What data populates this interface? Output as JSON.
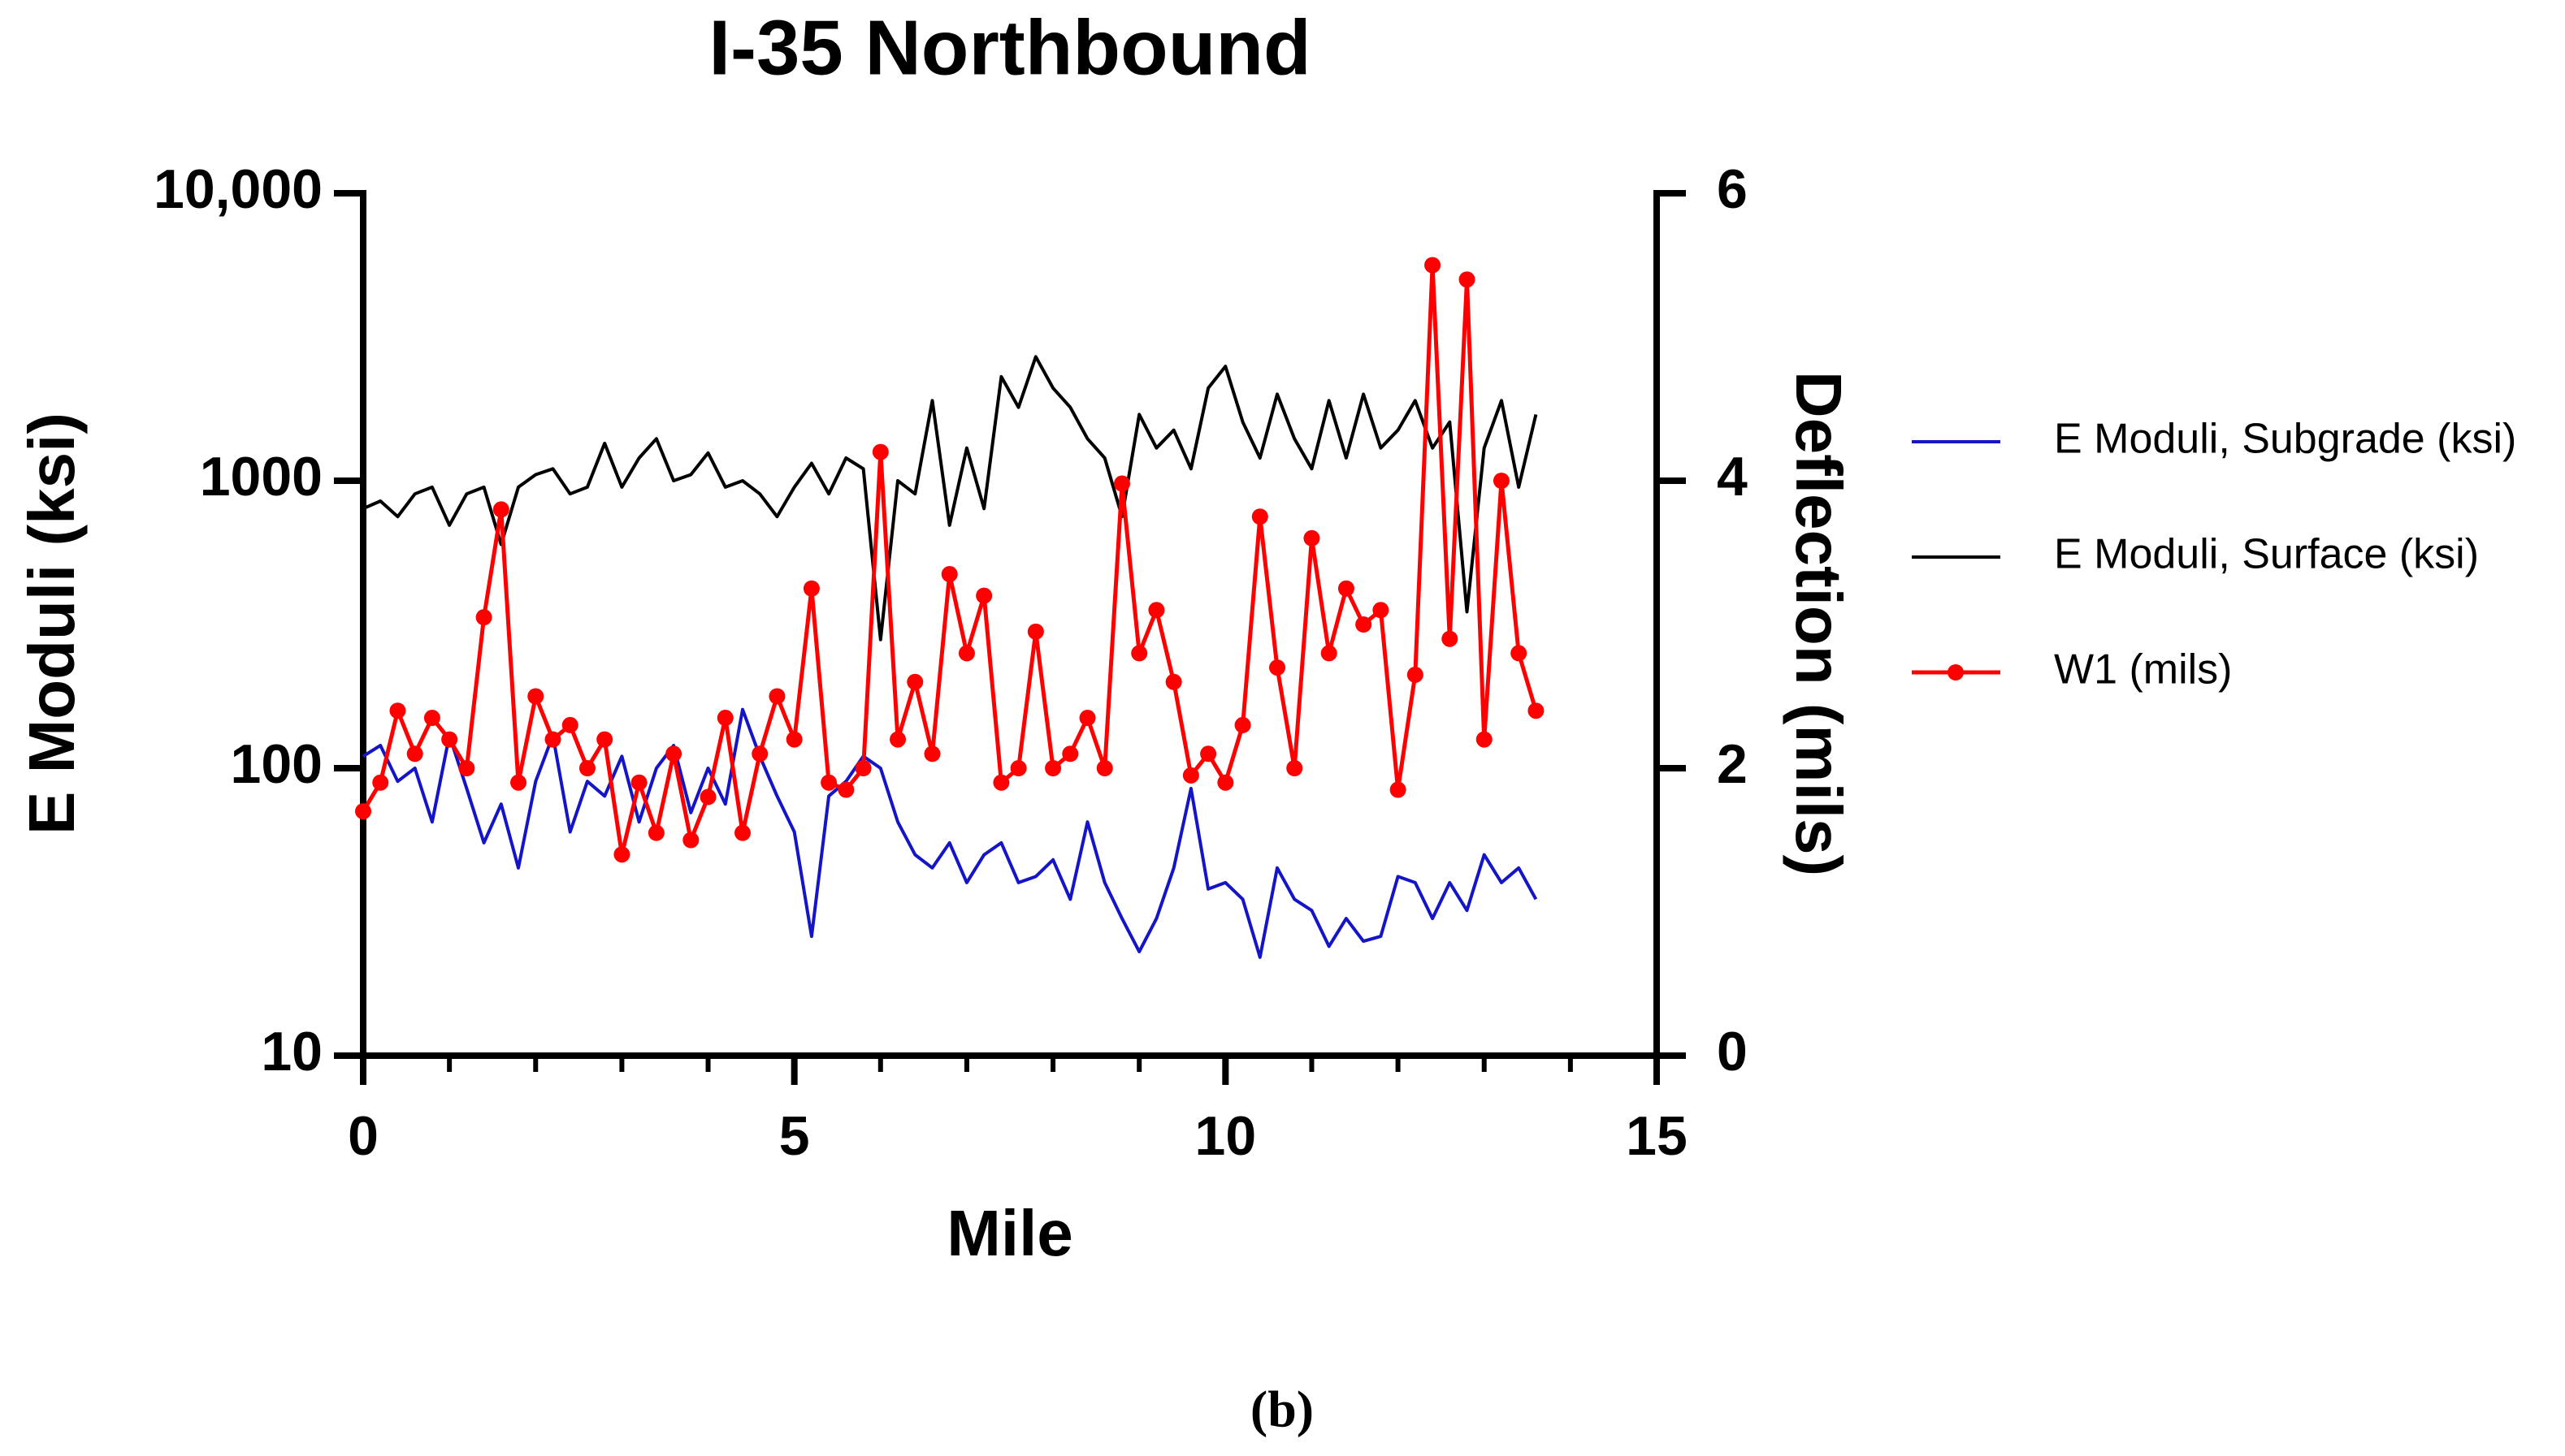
{
  "chart_data": {
    "type": "line",
    "title": "I-35 Northbound",
    "xlabel": "Mile",
    "ylabel": "E Moduli (ksi)",
    "y2label": "Deflection (mils)",
    "caption": "(b)",
    "x": [
      0,
      0.2,
      0.4,
      0.6,
      0.8,
      1,
      1.2,
      1.4,
      1.6,
      1.8,
      2,
      2.2,
      2.4,
      2.6,
      2.8,
      3,
      3.2,
      3.4,
      3.6,
      3.8,
      4,
      4.2,
      4.4,
      4.6,
      4.8,
      5,
      5.2,
      5.4,
      5.6,
      5.8,
      6,
      6.2,
      6.4,
      6.6,
      6.8,
      7,
      7.2,
      7.4,
      7.6,
      7.8,
      8,
      8.2,
      8.4,
      8.6,
      8.8,
      9,
      9.2,
      9.4,
      9.6,
      9.8,
      10,
      10.2,
      10.4,
      10.6,
      10.8,
      11,
      11.2,
      11.4,
      11.6,
      11.8,
      12,
      12.2,
      12.4,
      12.6,
      12.8,
      13,
      13.2,
      13.4,
      13.6
    ],
    "series": [
      {
        "name": "E Moduli, Subgrade (ksi)",
        "color": "#1414c8",
        "axis": "y",
        "values": [
          110,
          120,
          90,
          100,
          65,
          130,
          85,
          55,
          75,
          45,
          90,
          130,
          60,
          90,
          80,
          110,
          65,
          100,
          120,
          70,
          100,
          75,
          160,
          110,
          80,
          60,
          26,
          80,
          90,
          110,
          100,
          65,
          50,
          45,
          55,
          40,
          50,
          55,
          40,
          42,
          48,
          35,
          65,
          40,
          30,
          23,
          30,
          45,
          85,
          38,
          40,
          35,
          22,
          45,
          35,
          32,
          24,
          30,
          25,
          26,
          42,
          40,
          30,
          40,
          32,
          50,
          40,
          45,
          35
        ]
      },
      {
        "name": "E Moduli, Surface (ksi)",
        "color": "#000000",
        "axis": "y",
        "values": [
          800,
          850,
          750,
          900,
          950,
          700,
          900,
          950,
          600,
          950,
          1050,
          1100,
          900,
          950,
          1350,
          950,
          1200,
          1400,
          1000,
          1050,
          1250,
          950,
          1000,
          900,
          750,
          950,
          1150,
          900,
          1200,
          1100,
          280,
          1000,
          900,
          1900,
          700,
          1300,
          800,
          2300,
          1800,
          2700,
          2100,
          1800,
          1400,
          1200,
          750,
          1700,
          1300,
          1500,
          1100,
          2100,
          2500,
          1600,
          1200,
          2000,
          1400,
          1100,
          1900,
          1200,
          2000,
          1300,
          1500,
          1900,
          1300,
          1600,
          350,
          1300,
          1900,
          950,
          1700
        ]
      },
      {
        "name": "W1 (mils)",
        "color": "#ff0000",
        "axis": "y2",
        "markers": true,
        "values": [
          1.7,
          1.9,
          2.4,
          2.1,
          2.35,
          2.2,
          2.0,
          3.05,
          3.8,
          1.9,
          2.5,
          2.2,
          2.3,
          2.0,
          2.2,
          1.4,
          1.9,
          1.55,
          2.1,
          1.5,
          1.8,
          2.35,
          1.55,
          2.1,
          2.5,
          2.2,
          3.25,
          1.9,
          1.85,
          2.0,
          4.2,
          2.2,
          2.6,
          2.1,
          3.35,
          2.8,
          3.2,
          1.9,
          2.0,
          2.95,
          2.0,
          2.1,
          2.35,
          2.0,
          3.98,
          2.8,
          3.1,
          2.6,
          1.95,
          2.1,
          1.9,
          2.3,
          3.75,
          2.7,
          2.0,
          3.6,
          2.8,
          3.25,
          3.0,
          3.1,
          1.85,
          2.65,
          5.5,
          2.9,
          5.4,
          2.2,
          4.0,
          2.8,
          2.4
        ]
      }
    ],
    "xlim": [
      0,
      15
    ],
    "xticks": [
      0,
      5,
      10,
      15
    ],
    "xminorticks": [
      1,
      2,
      3,
      4,
      6,
      7,
      8,
      9,
      11,
      12,
      13,
      14
    ],
    "ylim": [
      10,
      10000
    ],
    "yticks": [
      10,
      100,
      1000,
      {
        "value": 10000,
        "label": "10,000"
      }
    ],
    "ylog": true,
    "y2lim": [
      0,
      6
    ],
    "y2ticks": [
      0,
      2,
      4,
      6
    ],
    "grid": false,
    "legend": "right"
  }
}
